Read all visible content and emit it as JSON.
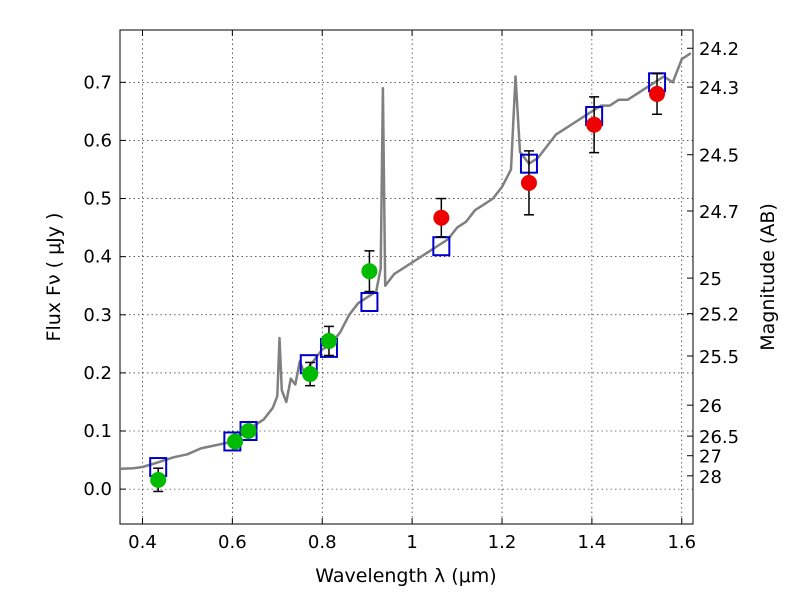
{
  "chart_data": {
    "type": "scatter",
    "xlabel": "Wavelength  λ (μm)",
    "ylabel": "Flux  Fν  ( μJy )",
    "y2label": "Magnitude (AB)",
    "xlim": [
      0.35,
      1.625
    ],
    "ylim": [
      -0.06,
      0.79
    ],
    "grid": true,
    "xticks": [
      0.4,
      0.6,
      0.8,
      1.0,
      1.2,
      1.4,
      1.6
    ],
    "xtick_labels": [
      "0.4",
      "0.6",
      "0.8",
      "1",
      "1.2",
      "1.4",
      "1.6"
    ],
    "yticks": [
      0.0,
      0.1,
      0.2,
      0.3,
      0.4,
      0.5,
      0.6,
      0.7
    ],
    "ytick_labels": [
      "0.0",
      "0.1",
      "0.2",
      "0.3",
      "0.4",
      "0.5",
      "0.6",
      "0.7"
    ],
    "mag_ticks": [
      {
        "label": "24.2",
        "flux": 0.7586
      },
      {
        "label": "24.3",
        "flux": 0.6918
      },
      {
        "label": "24.5",
        "flux": 0.5754
      },
      {
        "label": "24.7",
        "flux": 0.4786
      },
      {
        "label": "25",
        "flux": 0.3631
      },
      {
        "label": "25.2",
        "flux": 0.302
      },
      {
        "label": "25.5",
        "flux": 0.2291
      },
      {
        "label": "26",
        "flux": 0.1445
      },
      {
        "label": "26.5",
        "flux": 0.0912
      },
      {
        "label": "27",
        "flux": 0.0575
      },
      {
        "label": "28",
        "flux": 0.0229
      }
    ],
    "series": [
      {
        "kind": "spectrum",
        "color": "#808080",
        "points": [
          [
            0.35,
            0.035
          ],
          [
            0.38,
            0.036
          ],
          [
            0.4,
            0.038
          ],
          [
            0.43,
            0.045
          ],
          [
            0.45,
            0.05
          ],
          [
            0.47,
            0.055
          ],
          [
            0.5,
            0.06
          ],
          [
            0.53,
            0.07
          ],
          [
            0.56,
            0.075
          ],
          [
            0.59,
            0.08
          ],
          [
            0.61,
            0.09
          ],
          [
            0.63,
            0.1
          ],
          [
            0.65,
            0.11
          ],
          [
            0.67,
            0.12
          ],
          [
            0.69,
            0.14
          ],
          [
            0.7,
            0.16
          ],
          [
            0.705,
            0.26
          ],
          [
            0.71,
            0.17
          ],
          [
            0.72,
            0.15
          ],
          [
            0.73,
            0.19
          ],
          [
            0.74,
            0.18
          ],
          [
            0.75,
            0.22
          ],
          [
            0.76,
            0.2
          ],
          [
            0.78,
            0.22
          ],
          [
            0.8,
            0.24
          ],
          [
            0.82,
            0.25
          ],
          [
            0.84,
            0.27
          ],
          [
            0.86,
            0.3
          ],
          [
            0.88,
            0.32
          ],
          [
            0.9,
            0.33
          ],
          [
            0.92,
            0.34
          ],
          [
            0.93,
            0.38
          ],
          [
            0.935,
            0.69
          ],
          [
            0.94,
            0.35
          ],
          [
            0.96,
            0.37
          ],
          [
            0.98,
            0.38
          ],
          [
            1.0,
            0.39
          ],
          [
            1.02,
            0.4
          ],
          [
            1.04,
            0.41
          ],
          [
            1.06,
            0.42
          ],
          [
            1.08,
            0.43
          ],
          [
            1.1,
            0.45
          ],
          [
            1.12,
            0.46
          ],
          [
            1.14,
            0.48
          ],
          [
            1.16,
            0.49
          ],
          [
            1.18,
            0.5
          ],
          [
            1.2,
            0.52
          ],
          [
            1.22,
            0.55
          ],
          [
            1.23,
            0.71
          ],
          [
            1.24,
            0.58
          ],
          [
            1.26,
            0.56
          ],
          [
            1.28,
            0.57
          ],
          [
            1.3,
            0.59
          ],
          [
            1.32,
            0.61
          ],
          [
            1.34,
            0.62
          ],
          [
            1.36,
            0.63
          ],
          [
            1.38,
            0.64
          ],
          [
            1.4,
            0.65
          ],
          [
            1.42,
            0.66
          ],
          [
            1.44,
            0.66
          ],
          [
            1.46,
            0.67
          ],
          [
            1.48,
            0.67
          ],
          [
            1.5,
            0.68
          ],
          [
            1.52,
            0.69
          ],
          [
            1.54,
            0.7
          ],
          [
            1.56,
            0.71
          ],
          [
            1.58,
            0.7
          ],
          [
            1.6,
            0.74
          ],
          [
            1.62,
            0.75
          ]
        ]
      },
      {
        "kind": "model",
        "color": "#0000cc",
        "points": [
          [
            0.435,
            0.038
          ],
          [
            0.6,
            0.082
          ],
          [
            0.636,
            0.1
          ],
          [
            0.77,
            0.215
          ],
          [
            0.815,
            0.243
          ],
          [
            0.905,
            0.322
          ],
          [
            1.065,
            0.418
          ],
          [
            1.26,
            0.56
          ],
          [
            1.405,
            0.642
          ],
          [
            1.545,
            0.7
          ]
        ]
      },
      {
        "kind": "observed",
        "color": "#00bb00",
        "points": [
          [
            0.435,
            0.016,
            0.02
          ],
          [
            0.606,
            0.082,
            0
          ],
          [
            0.636,
            0.1,
            0
          ],
          [
            0.773,
            0.198,
            0.02
          ],
          [
            0.815,
            0.255,
            0.025
          ],
          [
            0.905,
            0.375,
            0.035
          ]
        ]
      },
      {
        "kind": "observed",
        "color": "#ee0000",
        "points": [
          [
            1.065,
            0.467,
            0.033
          ],
          [
            1.26,
            0.527,
            0.055
          ],
          [
            1.405,
            0.627,
            0.048
          ],
          [
            1.545,
            0.68,
            0.035
          ]
        ]
      }
    ]
  }
}
